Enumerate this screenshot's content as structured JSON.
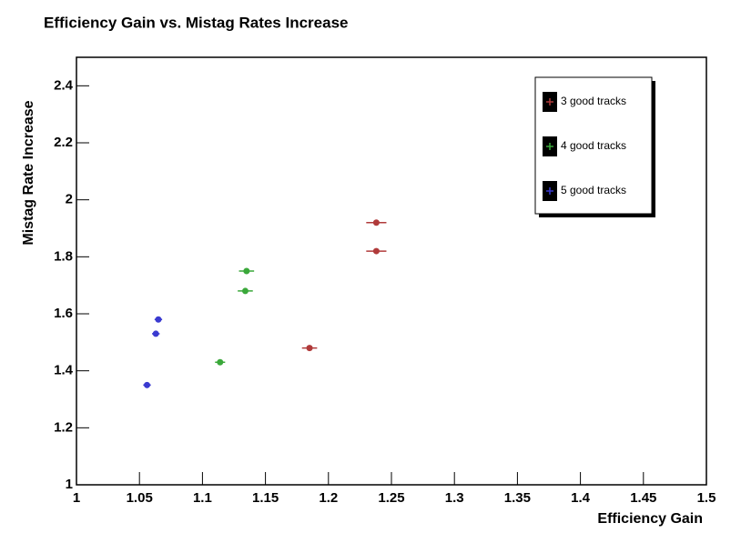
{
  "chart_data": {
    "type": "scatter",
    "title": "Efficiency Gain vs. Mistag Rates Increase",
    "x_label": "Efficiency Gain",
    "y_label": "Mistag Rate Increase",
    "xlim": [
      1,
      1.5
    ],
    "ylim": [
      1,
      2.5
    ],
    "xticks": [
      1,
      1.05,
      1.1,
      1.15,
      1.2,
      1.25,
      1.3,
      1.35,
      1.4,
      1.45,
      1.5
    ],
    "yticks": [
      1,
      1.2,
      1.4,
      1.6,
      1.8,
      2,
      2.2,
      2.4
    ],
    "legend_position": "upper-right",
    "series": [
      {
        "name": "3 good tracks",
        "color": "#b03a3a",
        "x": [
          1.238,
          1.238,
          1.185
        ],
        "y": [
          1.92,
          1.82,
          1.48
        ],
        "xerr": [
          0.008,
          0.008,
          0.006
        ]
      },
      {
        "name": "4 good tracks",
        "color": "#3aa83a",
        "x": [
          1.135,
          1.134,
          1.114
        ],
        "y": [
          1.75,
          1.68,
          1.43
        ],
        "xerr": [
          0.006,
          0.006,
          0.004
        ]
      },
      {
        "name": "5 good tracks",
        "color": "#3a3ad0",
        "x": [
          1.065,
          1.063,
          1.056
        ],
        "y": [
          1.58,
          1.53,
          1.35
        ],
        "xerr": [
          0.003,
          0.003,
          0.003
        ]
      }
    ]
  }
}
